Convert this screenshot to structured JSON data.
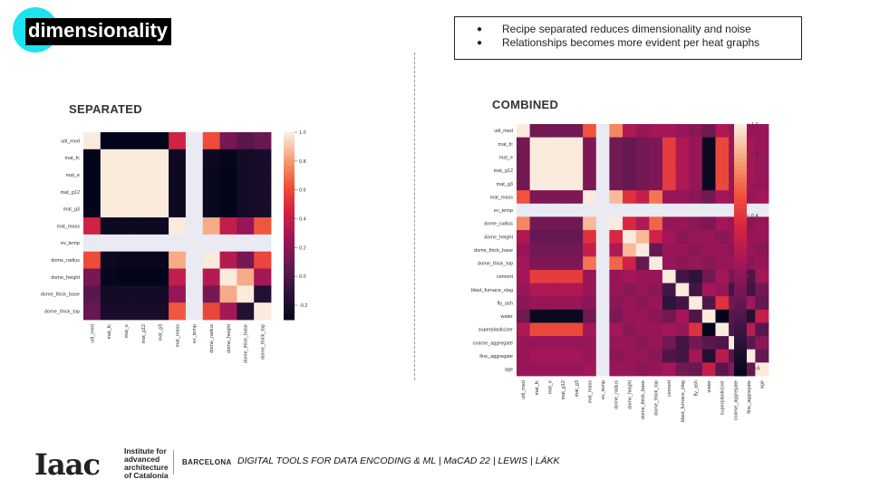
{
  "slide": {
    "title": "dimensionality",
    "bullets": [
      "Recipe separated reduces dimensionality and noise",
      "Relationships becomes more evident per heat graphs"
    ],
    "bullet_symbol": "●",
    "footer": {
      "logo_word": "Iaac",
      "institute": [
        "Institute for",
        "advanced",
        "architecture",
        "of Catalonia"
      ],
      "city": "BARCELONA",
      "course": "DIGITAL TOOLS FOR DATA ENCODING & ML | MaCAD 22 | LEWIS | LÄKK"
    },
    "colors": {
      "accent": "#1de3f0",
      "title_bg": "#000000",
      "missing_cell": "#eaeaf2"
    }
  },
  "chart_data": [
    {
      "type": "heatmap",
      "title": "SEPARATED",
      "labels": [
        "util_med",
        "mat_fc",
        "mat_e",
        "mat_g12",
        "mat_g3",
        "mat_mass",
        "ev_temp",
        "dome_radius",
        "dome_height",
        "dome_thick_base",
        "dome_thick_top"
      ],
      "missing": [
        "ev_temp"
      ],
      "colorbar": {
        "min": -0.3,
        "max": 1.0,
        "ticks": [
          1.0,
          0.8,
          0.6,
          0.4,
          0.2,
          0.0,
          -0.2
        ]
      },
      "matrix": [
        [
          1.0,
          -0.3,
          -0.3,
          -0.3,
          -0.3,
          0.45,
          null,
          0.62,
          0.15,
          0.05,
          0.1
        ],
        [
          -0.3,
          1.0,
          1.0,
          1.0,
          1.0,
          -0.25,
          null,
          -0.25,
          -0.28,
          -0.22,
          -0.2
        ],
        [
          -0.3,
          1.0,
          1.0,
          1.0,
          1.0,
          -0.25,
          null,
          -0.27,
          -0.3,
          -0.22,
          -0.2
        ],
        [
          -0.3,
          1.0,
          1.0,
          1.0,
          1.0,
          -0.25,
          null,
          -0.27,
          -0.3,
          -0.22,
          -0.2
        ],
        [
          -0.3,
          1.0,
          1.0,
          1.0,
          1.0,
          -0.25,
          null,
          -0.27,
          -0.3,
          -0.22,
          -0.2
        ],
        [
          0.45,
          -0.25,
          -0.25,
          -0.25,
          -0.25,
          1.0,
          null,
          0.85,
          0.4,
          0.25,
          0.65
        ],
        [
          null,
          null,
          null,
          null,
          null,
          null,
          null,
          null,
          null,
          null,
          null
        ],
        [
          0.62,
          -0.25,
          -0.27,
          -0.27,
          -0.27,
          0.85,
          null,
          1.0,
          0.35,
          0.15,
          0.6
        ],
        [
          0.15,
          -0.28,
          -0.3,
          -0.3,
          -0.3,
          0.4,
          null,
          0.35,
          1.0,
          0.85,
          0.3
        ],
        [
          0.05,
          -0.22,
          -0.22,
          -0.22,
          -0.22,
          0.25,
          null,
          0.15,
          0.85,
          1.0,
          -0.15
        ],
        [
          0.1,
          -0.2,
          -0.2,
          -0.2,
          -0.2,
          0.65,
          null,
          0.6,
          0.3,
          -0.15,
          1.0
        ]
      ]
    },
    {
      "type": "heatmap",
      "title": "COMBINED",
      "labels": [
        "util_med",
        "mat_fc",
        "mat_e",
        "mat_g12",
        "mat_g3",
        "mat_mass",
        "ev_temp",
        "dome_radius",
        "dome_height",
        "dome_thick_base",
        "dome_thick_top",
        "cement",
        "blast_furnace_slag",
        "fly_ash",
        "water",
        "superplasticizer",
        "coarse_aggregate",
        "fine_aggregate",
        "age"
      ],
      "missing": [
        "ev_temp"
      ],
      "colorbar": {
        "min": -0.65,
        "max": 1.0,
        "ticks": [
          1.0,
          0.8,
          0.6,
          0.4,
          0.2,
          0.0,
          -0.2,
          -0.4,
          -0.6
        ]
      },
      "matrix": [
        [
          1.0,
          -0.1,
          -0.1,
          -0.1,
          -0.1,
          0.55,
          null,
          0.7,
          0.15,
          0.05,
          0.1,
          0.1,
          0.05,
          0.0,
          -0.1,
          0.15,
          0.05,
          0.05,
          0.05
        ],
        [
          -0.1,
          1.0,
          1.0,
          1.0,
          1.0,
          -0.05,
          null,
          -0.1,
          -0.15,
          -0.1,
          -0.05,
          0.45,
          0.15,
          0.05,
          -0.6,
          0.5,
          0.05,
          0.1,
          0.05
        ],
        [
          -0.1,
          1.0,
          1.0,
          1.0,
          1.0,
          -0.05,
          null,
          -0.1,
          -0.15,
          -0.1,
          -0.05,
          0.45,
          0.15,
          0.05,
          -0.6,
          0.5,
          0.05,
          0.1,
          0.05
        ],
        [
          -0.1,
          1.0,
          1.0,
          1.0,
          1.0,
          -0.05,
          null,
          -0.1,
          -0.15,
          -0.1,
          -0.05,
          0.45,
          0.15,
          0.05,
          -0.6,
          0.5,
          0.05,
          0.1,
          0.05
        ],
        [
          -0.1,
          1.0,
          1.0,
          1.0,
          1.0,
          -0.05,
          null,
          -0.1,
          -0.15,
          -0.1,
          -0.05,
          0.45,
          0.15,
          0.05,
          -0.6,
          0.5,
          0.05,
          0.1,
          0.05
        ],
        [
          0.55,
          -0.05,
          -0.05,
          -0.05,
          -0.05,
          1.0,
          null,
          0.85,
          0.4,
          0.25,
          0.65,
          0.05,
          0.05,
          0.0,
          -0.1,
          0.1,
          0.05,
          0.05,
          0.1
        ],
        [
          null,
          null,
          null,
          null,
          null,
          null,
          null,
          null,
          null,
          null,
          null,
          null,
          null,
          null,
          null,
          null,
          null,
          null,
          null
        ],
        [
          0.7,
          -0.1,
          -0.1,
          -0.1,
          -0.1,
          0.85,
          null,
          1.0,
          0.35,
          0.15,
          0.6,
          0.05,
          0.05,
          0.0,
          -0.05,
          0.1,
          0.05,
          0.0,
          0.05
        ],
        [
          0.15,
          -0.15,
          -0.15,
          -0.15,
          -0.15,
          0.4,
          null,
          0.35,
          1.0,
          0.85,
          0.3,
          0.1,
          0.0,
          0.05,
          0.05,
          0.0,
          0.05,
          0.05,
          0.05
        ],
        [
          0.05,
          -0.1,
          -0.1,
          -0.1,
          -0.1,
          0.25,
          null,
          0.15,
          0.85,
          1.0,
          -0.15,
          0.05,
          0.05,
          0.0,
          0.05,
          0.05,
          0.0,
          0.05,
          0.0
        ],
        [
          0.1,
          -0.05,
          -0.05,
          -0.05,
          -0.05,
          0.65,
          null,
          0.6,
          0.3,
          -0.15,
          1.0,
          0.05,
          0.0,
          0.05,
          0.0,
          0.05,
          0.05,
          0.0,
          0.05
        ],
        [
          0.1,
          0.45,
          0.45,
          0.45,
          0.45,
          0.05,
          null,
          0.05,
          0.1,
          0.05,
          0.05,
          1.0,
          -0.3,
          -0.4,
          -0.1,
          0.1,
          -0.1,
          -0.25,
          0.1
        ],
        [
          0.05,
          0.15,
          0.15,
          0.15,
          0.15,
          0.05,
          null,
          0.05,
          0.0,
          0.05,
          0.0,
          -0.3,
          1.0,
          -0.3,
          0.1,
          0.05,
          -0.3,
          -0.3,
          -0.1
        ],
        [
          0.0,
          0.05,
          0.05,
          0.05,
          0.05,
          0.0,
          null,
          0.0,
          0.05,
          0.0,
          0.05,
          -0.4,
          -0.3,
          1.0,
          -0.25,
          0.4,
          -0.1,
          0.1,
          -0.15
        ],
        [
          -0.1,
          -0.6,
          -0.6,
          -0.6,
          -0.6,
          -0.1,
          null,
          -0.05,
          0.05,
          0.05,
          0.0,
          -0.1,
          0.1,
          -0.25,
          1.0,
          -0.65,
          -0.2,
          -0.45,
          0.25
        ],
        [
          0.15,
          0.5,
          0.5,
          0.5,
          0.5,
          0.1,
          null,
          0.1,
          0.0,
          0.05,
          0.05,
          0.1,
          0.05,
          0.4,
          -0.65,
          1.0,
          -0.25,
          0.2,
          -0.2
        ],
        [
          0.05,
          0.05,
          0.05,
          0.05,
          0.05,
          0.05,
          null,
          0.05,
          0.05,
          0.0,
          0.05,
          -0.1,
          -0.3,
          -0.1,
          -0.2,
          -0.25,
          1.0,
          -0.2,
          0.0
        ],
        [
          0.05,
          0.1,
          0.1,
          0.1,
          0.1,
          0.05,
          null,
          0.0,
          0.05,
          0.05,
          0.0,
          -0.25,
          -0.3,
          0.1,
          -0.45,
          0.2,
          -0.2,
          1.0,
          -0.15
        ],
        [
          0.05,
          0.05,
          0.05,
          0.05,
          0.05,
          0.1,
          null,
          0.05,
          0.05,
          0.0,
          0.05,
          0.1,
          -0.1,
          -0.15,
          0.25,
          -0.2,
          0.0,
          -0.15,
          1.0
        ]
      ]
    }
  ]
}
